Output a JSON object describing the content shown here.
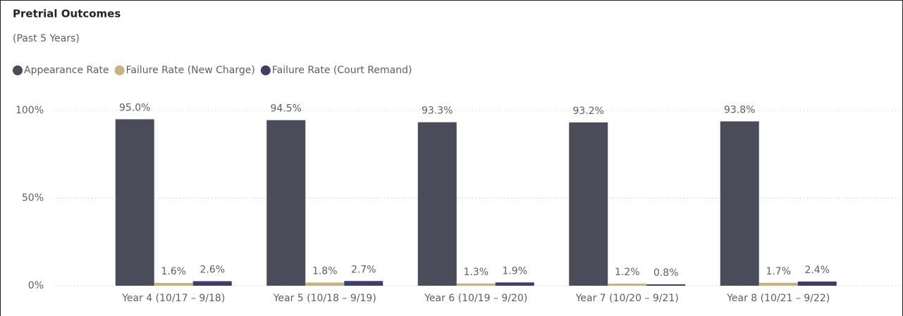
{
  "chart_data": {
    "type": "bar",
    "title": "Pretrial Outcomes",
    "subtitle": "(Past 5 Years)",
    "categories": [
      "Year 4 (10/17 – 9/18)",
      "Year 5 (10/18 – 9/19)",
      "Year 6 (10/19 – 9/20)",
      "Year 7 (10/20 – 9/21)",
      "Year 8 (10/21 – 9/22)"
    ],
    "series": [
      {
        "name": "Appearance Rate",
        "color": "#4a4c5a",
        "values": [
          95.0,
          94.5,
          93.3,
          93.2,
          93.8
        ],
        "value_labels": [
          "95.0%",
          "94.5%",
          "93.3%",
          "93.2%",
          "93.8%"
        ]
      },
      {
        "name": "Failure Rate (New Charge)",
        "color": "#c8b27f",
        "values": [
          1.6,
          1.8,
          1.3,
          1.2,
          1.7
        ],
        "value_labels": [
          "1.6%",
          "1.8%",
          "1.3%",
          "1.2%",
          "1.7%"
        ]
      },
      {
        "name": "Failure Rate (Court Remand)",
        "color": "#3e3d6b",
        "values": [
          2.6,
          2.7,
          1.9,
          0.8,
          2.4
        ],
        "value_labels": [
          "2.6%",
          "2.7%",
          "1.9%",
          "0.8%",
          "2.4%"
        ]
      }
    ],
    "ylim": [
      0,
      100
    ],
    "yticks": [
      {
        "value": 0,
        "label": "0%"
      },
      {
        "value": 50,
        "label": "50%"
      },
      {
        "value": 100,
        "label": "100%"
      }
    ],
    "grid": true,
    "legend": "top-left"
  }
}
